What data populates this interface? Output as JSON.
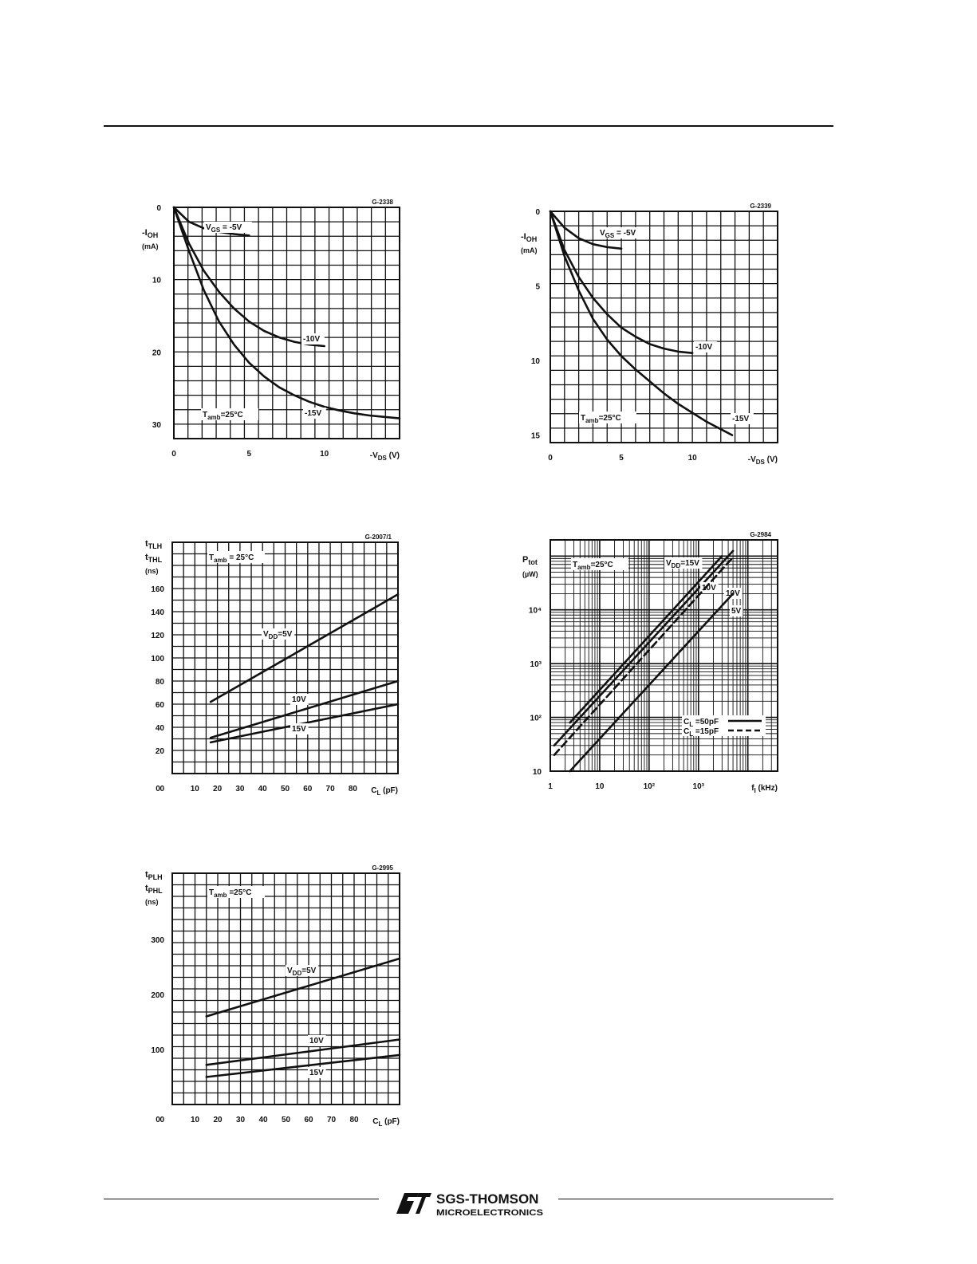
{
  "footer": {
    "brand": "SGS-THOMSON",
    "division": "MICROELECTRONICS"
  },
  "chart_data": [
    {
      "type": "line",
      "code": "G-2338",
      "y_label_lines": [
        "-I",
        "OH",
        "(mA)"
      ],
      "x_label": "-V",
      "x_label_sub": "DS",
      "x_unit": "(V)",
      "x_ticks": [
        "0",
        "5",
        "10"
      ],
      "y_ticks": [
        "0",
        "10",
        "20",
        "30"
      ],
      "xlim": [
        0,
        15
      ],
      "ylim": [
        0,
        32
      ],
      "y_inverted": true,
      "annotation": {
        "main": "T",
        "sub": "amb",
        "rest": "=25°C"
      },
      "series": [
        {
          "name": "V_GS = -5V",
          "label": {
            "main": "V",
            "sub": "GS",
            "rest": " = -5V"
          },
          "x": [
            0,
            1,
            2,
            3,
            4,
            5
          ],
          "y": [
            0,
            2.0,
            2.9,
            3.4,
            3.7,
            3.9
          ]
        },
        {
          "name": "-10V",
          "label": {
            "main": "-10V",
            "sub": "",
            "rest": ""
          },
          "x": [
            0,
            1,
            2,
            3,
            4,
            5,
            6,
            7,
            8,
            9,
            10
          ],
          "y": [
            0,
            5.0,
            8.8,
            11.7,
            14.0,
            15.8,
            17.1,
            18.0,
            18.6,
            19.0,
            19.2
          ]
        },
        {
          "name": "-15V",
          "label": {
            "main": "-15V",
            "sub": "",
            "rest": ""
          },
          "x": [
            0,
            1,
            2,
            3,
            4,
            5,
            6,
            7,
            8,
            9,
            10,
            11,
            12,
            13,
            14,
            15
          ],
          "y": [
            0,
            6.0,
            11.5,
            15.8,
            19.0,
            21.5,
            23.4,
            24.9,
            26.0,
            26.9,
            27.6,
            28.1,
            28.5,
            28.8,
            29.0,
            29.2
          ]
        }
      ]
    },
    {
      "type": "line",
      "code": "G-2339",
      "y_label_lines": [
        "-I",
        "OH",
        "(mA)"
      ],
      "x_label": "-V",
      "x_label_sub": "DS",
      "x_unit": "(V)",
      "x_ticks": [
        "0",
        "5",
        "10"
      ],
      "y_ticks": [
        "0",
        "5",
        "10",
        "15"
      ],
      "xlim": [
        0,
        16
      ],
      "ylim": [
        0,
        15.5
      ],
      "y_inverted": true,
      "annotation": {
        "main": "T",
        "sub": "amb",
        "rest": "=25°C"
      },
      "series": [
        {
          "name": "V_GS = -5V",
          "label": {
            "main": "V",
            "sub": "GS",
            "rest": " = -5V"
          },
          "x": [
            0,
            1,
            2,
            3,
            4,
            5
          ],
          "y": [
            0,
            1.1,
            1.8,
            2.2,
            2.4,
            2.5
          ]
        },
        {
          "name": "-10V",
          "label": {
            "main": "-10V",
            "sub": "",
            "rest": ""
          },
          "x": [
            0,
            1,
            2,
            3,
            4,
            5,
            6,
            7,
            8,
            9,
            10
          ],
          "y": [
            0,
            2.6,
            4.4,
            5.8,
            6.9,
            7.8,
            8.4,
            8.9,
            9.2,
            9.4,
            9.5
          ]
        },
        {
          "name": "-15V",
          "label": {
            "main": "-15V",
            "sub": "",
            "rest": ""
          },
          "x": [
            0,
            1,
            2,
            3,
            4,
            5,
            6,
            7,
            8,
            9,
            10,
            11,
            12,
            12.8
          ],
          "y": [
            0,
            3.0,
            5.3,
            7.2,
            8.6,
            9.7,
            10.6,
            11.4,
            12.2,
            12.9,
            13.5,
            14.1,
            14.6,
            15.0
          ]
        }
      ]
    },
    {
      "type": "line",
      "code": "G-2007/1",
      "y_label_lines": [
        "t",
        "TLH",
        "t",
        "THL",
        "(ns)"
      ],
      "x_label": "C",
      "x_label_sub": "L",
      "x_unit": "(pF)",
      "x_ticks": [
        "0",
        "10",
        "20",
        "30",
        "40",
        "50",
        "60",
        "70",
        "80"
      ],
      "y_ticks": [
        "0",
        "20",
        "40",
        "60",
        "80",
        "100",
        "120",
        "140",
        "160"
      ],
      "xlim": [
        0,
        100
      ],
      "ylim": [
        0,
        200
      ],
      "y_inverted": false,
      "annotation": {
        "main": "T",
        "sub": "amb",
        "rest": " = 25°C"
      },
      "series": [
        {
          "name": "V_DD=5V",
          "label": {
            "main": "V",
            "sub": "DD",
            "rest": "=5V"
          },
          "x": [
            17,
            100
          ],
          "y": [
            62,
            155
          ]
        },
        {
          "name": "10V",
          "label": {
            "main": "10V",
            "sub": "",
            "rest": ""
          },
          "x": [
            17,
            100
          ],
          "y": [
            31,
            80
          ]
        },
        {
          "name": "15V",
          "label": {
            "main": "15V",
            "sub": "",
            "rest": ""
          },
          "x": [
            17,
            100
          ],
          "y": [
            27,
            60
          ]
        }
      ]
    },
    {
      "type": "line",
      "code": "G-2984",
      "y_label_lines": [
        "P",
        "tot",
        "(µW)"
      ],
      "x_label": "f",
      "x_label_sub": "I",
      "x_unit": "(kHz)",
      "x_ticks": [
        "1",
        "10",
        "10²",
        "10³"
      ],
      "y_ticks": [
        "10",
        "10²",
        "10³",
        "10⁴"
      ],
      "xlim": [
        1,
        40000
      ],
      "ylim": [
        10,
        200000
      ],
      "log_x": true,
      "log_y": true,
      "annotation": {
        "main": "T",
        "sub": "amb",
        "rest": "=25°C"
      },
      "legend": [
        {
          "main": "C",
          "sub": "L",
          "rest": " =50pF",
          "style": "solid"
        },
        {
          "main": "C",
          "sub": "L",
          "rest": " =15pF",
          "style": "dashed"
        }
      ],
      "series": [
        {
          "name": "V_DD=15V, C_L=50pF",
          "label": {
            "main": "V",
            "sub": "DD",
            "rest": "=15V"
          },
          "dashed": false,
          "x": [
            2.5,
            3000
          ],
          "y": [
            80,
            100000
          ]
        },
        {
          "name": "10V, C_L=50pF",
          "label": {
            "main": "10V",
            "sub": "",
            "rest": ""
          },
          "dashed": false,
          "x": [
            1.2,
            5000
          ],
          "y": [
            30,
            125000
          ]
        },
        {
          "name": "10V, C_L=15pF",
          "label": {
            "main": "10V",
            "sub": "",
            "rest": ""
          },
          "dashed": true,
          "x": [
            1.2,
            5000
          ],
          "y": [
            20,
            95000
          ]
        },
        {
          "name": "5V, C_L=50pF",
          "label": {
            "main": "5V",
            "sub": "",
            "rest": ""
          },
          "dashed": false,
          "x": [
            2.5,
            5000
          ],
          "y": [
            10,
            20000
          ]
        }
      ]
    },
    {
      "type": "line",
      "code": "G-2995",
      "y_label_lines": [
        "t",
        "PLH",
        "t",
        "PHL",
        "(ns)"
      ],
      "x_label": "C",
      "x_label_sub": "L",
      "x_unit": "(pF)",
      "x_ticks": [
        "0",
        "10",
        "20",
        "30",
        "40",
        "50",
        "60",
        "70",
        "80"
      ],
      "y_ticks": [
        "0",
        "100",
        "200",
        "300"
      ],
      "xlim": [
        0,
        100
      ],
      "ylim": [
        0,
        420
      ],
      "y_inverted": false,
      "annotation": {
        "main": "T",
        "sub": "amb",
        "rest": " =25°C"
      },
      "series": [
        {
          "name": "V_DD=5V",
          "label": {
            "main": "V",
            "sub": "DD",
            "rest": "=5V"
          },
          "x": [
            15,
            100
          ],
          "y": [
            160,
            265
          ]
        },
        {
          "name": "10V",
          "label": {
            "main": "10V",
            "sub": "",
            "rest": ""
          },
          "x": [
            15,
            100
          ],
          "y": [
            72,
            118
          ]
        },
        {
          "name": "15V",
          "label": {
            "main": "15V",
            "sub": "",
            "rest": ""
          },
          "x": [
            15,
            100
          ],
          "y": [
            50,
            90
          ]
        }
      ]
    }
  ]
}
